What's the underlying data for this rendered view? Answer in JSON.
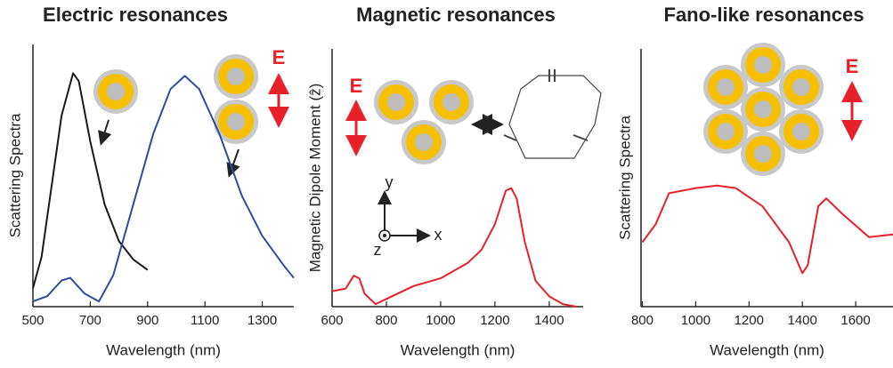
{
  "chart_data": [
    {
      "type": "line",
      "title": "Electric resonances",
      "x_label": "Wavelength (nm)",
      "y_label": "Scattering Spectra",
      "xlim": [
        500,
        1410
      ],
      "ylim": [
        0,
        1
      ],
      "xticks": [
        500,
        700,
        900,
        1100,
        1300
      ],
      "series": [
        {
          "color": "#1a1a1a",
          "x": [
            500,
            530,
            560,
            600,
            640,
            660,
            700,
            750,
            800,
            850,
            900
          ],
          "values": [
            0.07,
            0.19,
            0.42,
            0.73,
            0.89,
            0.86,
            0.63,
            0.39,
            0.25,
            0.18,
            0.14
          ]
        },
        {
          "color": "#2e4c9c",
          "x": [
            500,
            550,
            600,
            630,
            680,
            730,
            780,
            850,
            920,
            980,
            1030,
            1080,
            1150,
            1230,
            1300,
            1380,
            1410
          ],
          "values": [
            0.02,
            0.04,
            0.1,
            0.11,
            0.05,
            0.02,
            0.12,
            0.39,
            0.66,
            0.83,
            0.88,
            0.83,
            0.66,
            0.42,
            0.27,
            0.15,
            0.11
          ]
        }
      ],
      "annotations": [
        "E"
      ]
    },
    {
      "type": "line",
      "title": "Magnetic resonances",
      "x_label": "Wavelength (nm)",
      "y_label": "Magnetic Dipole Moment (ẑ)",
      "xlim": [
        600,
        1525
      ],
      "ylim": [
        0,
        1
      ],
      "xticks": [
        600,
        800,
        1000,
        1200,
        1400
      ],
      "series": [
        {
          "color": "#e8202a",
          "x": [
            600,
            650,
            680,
            700,
            720,
            760,
            800,
            900,
            1000,
            1100,
            1150,
            1200,
            1240,
            1260,
            1280,
            1310,
            1350,
            1400,
            1450,
            1500
          ],
          "values": [
            0.06,
            0.07,
            0.12,
            0.11,
            0.05,
            0.01,
            0.03,
            0.08,
            0.11,
            0.17,
            0.22,
            0.32,
            0.45,
            0.46,
            0.42,
            0.25,
            0.1,
            0.04,
            0.01,
            0.0
          ]
        }
      ],
      "annotations": [
        "E",
        "y",
        "x",
        "z"
      ]
    },
    {
      "type": "line",
      "title": "Fano-like resonances",
      "x_label": "Wavelength (nm)",
      "y_label": "Scattering Spectra",
      "xlim": [
        795,
        1740
      ],
      "ylim": [
        0,
        1
      ],
      "xticks": [
        800,
        1000,
        1200,
        1400,
        1600
      ],
      "series": [
        {
          "color": "#e8202a",
          "x": [
            800,
            850,
            900,
            1000,
            1080,
            1150,
            1250,
            1350,
            1400,
            1420,
            1460,
            1490,
            1550,
            1650,
            1740
          ],
          "values": [
            0.25,
            0.32,
            0.44,
            0.46,
            0.47,
            0.46,
            0.39,
            0.25,
            0.13,
            0.16,
            0.39,
            0.42,
            0.36,
            0.27,
            0.28
          ]
        }
      ],
      "annotations": [
        "E"
      ]
    }
  ]
}
